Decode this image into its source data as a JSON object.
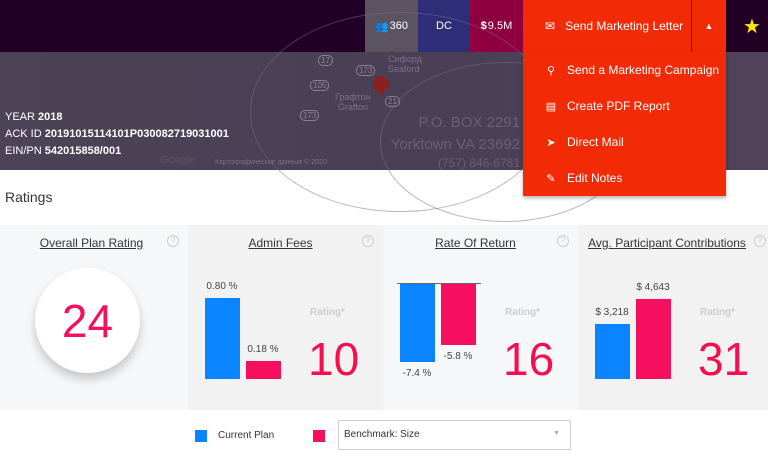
{
  "header": {
    "participants": "360",
    "state": "DC",
    "assets": "9.5M",
    "send_letter": "Send Marketing Letter",
    "colors": {
      "bar": "#220026",
      "participants_bg": "#5b5460",
      "state_bg": "#2e2e78",
      "assets_bg": "#8e0040",
      "action": "#f32a06"
    }
  },
  "menu": {
    "items": [
      {
        "label": "Send a Marketing Campaign",
        "icon": "campaign-icon"
      },
      {
        "label": "Create PDF Report",
        "icon": "pdf-icon"
      },
      {
        "label": "Direct Mail",
        "icon": "paper-plane-icon"
      },
      {
        "label": "Edit Notes",
        "icon": "edit-icon"
      }
    ]
  },
  "plan": {
    "year_label": "YEAR",
    "year": "2018",
    "ack_label": "ACK ID",
    "ack": "20191015114101P030082719031001",
    "ein_label": "EIN/PN",
    "ein": "542015858/001"
  },
  "address": {
    "line1": "P.O. BOX 2291",
    "line2": "Yorktown VA 23692",
    "phone": "(757) 846-6781"
  },
  "map": {
    "labels": [
      "Сифорд",
      "Seaford",
      "Графтон",
      "Grafton",
      "Google",
      "Картографические данные © 2020"
    ]
  },
  "ratings": {
    "title": "Ratings",
    "rating_label": "Rating*",
    "overall": {
      "title": "Overall Plan Rating",
      "value": "24"
    },
    "cards": [
      {
        "title": "Admin Fees",
        "rating": "10",
        "current": 0.8,
        "benchmark": 0.18,
        "current_label": "0.80 %",
        "benchmark_label": "0.18 %"
      },
      {
        "title": "Rate Of Return",
        "rating": "16",
        "current": -7.4,
        "benchmark": -5.8,
        "current_label": "-7.4 %",
        "benchmark_label": "-5.8 %"
      },
      {
        "title": "Avg. Participant Contributions",
        "rating": "31",
        "current": 3218,
        "benchmark": 4643,
        "current_label": "$ 3,218",
        "benchmark_label": "$ 4,643"
      }
    ]
  },
  "legend": {
    "current": "Current Plan",
    "benchmark_select": "Benchmark: Size",
    "current_color": "#0a84ff",
    "benchmark_color": "#f50f5f"
  }
}
